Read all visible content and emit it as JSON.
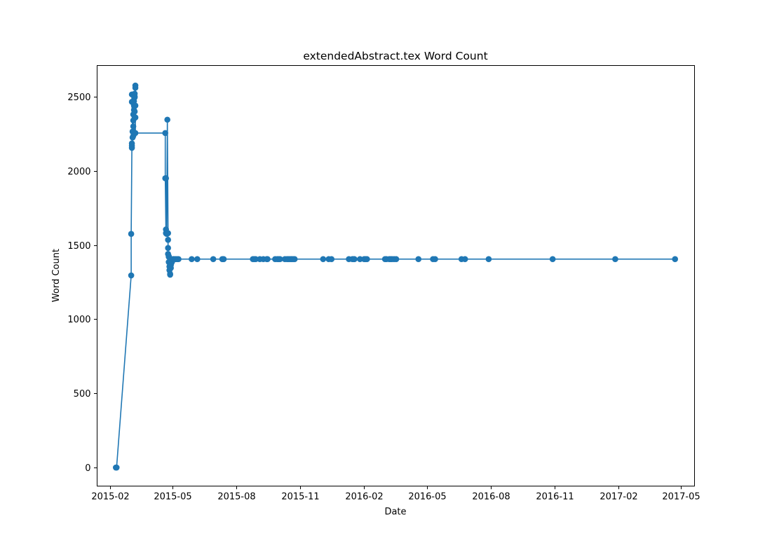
{
  "chart_data": {
    "type": "line",
    "title": "extendedAbstract.tex Word Count",
    "xlabel": "Date",
    "ylabel": "Word Count",
    "x_axis_kind": "date",
    "xlim": [
      "2015-01-13",
      "2017-05-21"
    ],
    "ylim": [
      -125,
      2710
    ],
    "x_ticks": [
      "2015-02-01",
      "2015-05-01",
      "2015-08-01",
      "2015-11-01",
      "2016-02-01",
      "2016-05-01",
      "2016-08-01",
      "2016-11-01",
      "2017-02-01",
      "2017-05-01"
    ],
    "x_tick_labels": [
      "2015-02",
      "2015-05",
      "2015-08",
      "2015-11",
      "2016-02",
      "2016-05",
      "2016-08",
      "2016-11",
      "2017-02",
      "2017-05"
    ],
    "y_ticks": [
      0,
      500,
      1000,
      1500,
      2000,
      2500
    ],
    "y_tick_labels": [
      "0",
      "500",
      "1000",
      "1500",
      "2000",
      "2500"
    ],
    "grid": false,
    "legend": "none",
    "marker": "circle",
    "color": "#1f77b4",
    "series": [
      {
        "x": [
          "2015-02-09",
          "2015-02-10",
          "2015-03-03",
          "2015-03-03",
          "2015-03-04",
          "2015-03-04",
          "2015-03-04",
          "2015-03-05",
          "2015-03-05",
          "2015-03-04",
          "2015-03-04",
          "2015-03-06",
          "2015-03-06",
          "2015-03-06",
          "2015-03-06",
          "2015-03-06",
          "2015-03-07",
          "2015-03-07",
          "2015-03-07",
          "2015-03-08",
          "2015-03-08",
          "2015-03-08",
          "2015-03-08",
          "2015-03-09",
          "2015-03-09",
          "2015-03-09",
          "2015-03-09",
          "2015-03-09",
          "2015-04-21",
          "2015-04-21",
          "2015-04-22",
          "2015-04-22",
          "2015-04-22",
          "2015-04-23",
          "2015-04-24",
          "2015-04-25",
          "2015-04-25",
          "2015-04-25",
          "2015-04-25",
          "2015-04-26",
          "2015-04-26",
          "2015-04-26",
          "2015-04-27",
          "2015-04-27",
          "2015-04-28",
          "2015-04-28",
          "2015-04-29",
          "2015-04-29",
          "2015-04-30",
          "2015-05-01",
          "2015-05-02",
          "2015-05-03",
          "2015-05-04",
          "2015-05-06",
          "2015-05-08",
          "2015-05-10",
          "2015-05-29",
          "2015-06-06",
          "2015-06-29",
          "2015-07-12",
          "2015-07-13",
          "2015-07-14",
          "2015-08-25",
          "2015-08-27",
          "2015-08-29",
          "2015-09-04",
          "2015-09-09",
          "2015-09-14",
          "2015-09-15",
          "2015-09-26",
          "2015-09-29",
          "2015-10-01",
          "2015-10-03",
          "2015-10-10",
          "2015-10-13",
          "2015-10-15",
          "2015-10-17",
          "2015-10-19",
          "2015-10-20",
          "2015-10-22",
          "2015-10-24",
          "2015-12-04",
          "2015-12-12",
          "2015-12-16",
          "2016-01-10",
          "2016-01-15",
          "2016-01-17",
          "2016-01-18",
          "2016-01-26",
          "2016-02-01",
          "2016-02-03",
          "2016-02-05",
          "2016-03-02",
          "2016-03-04",
          "2016-03-08",
          "2016-03-10",
          "2016-03-12",
          "2016-03-15",
          "2016-03-18",
          "2016-04-19",
          "2016-05-10",
          "2016-05-13",
          "2016-06-20",
          "2016-06-25",
          "2016-07-29",
          "2016-10-29",
          "2017-01-27",
          "2017-04-23"
        ],
        "y": [
          0,
          0,
          1295,
          1575,
          2155,
          2170,
          2185,
          2225,
          2265,
          2465,
          2515,
          2235,
          2265,
          2300,
          2340,
          2380,
          2410,
          2440,
          2470,
          2500,
          2520,
          2495,
          2400,
          2575,
          2560,
          2440,
          2360,
          2255,
          2255,
          1950,
          1580,
          1605,
          1950,
          1575,
          2345,
          1580,
          1535,
          1480,
          1440,
          1425,
          1420,
          1385,
          1355,
          1330,
          1305,
          1300,
          1345,
          1365,
          1380,
          1390,
          1405,
          1405,
          1405,
          1405,
          1405,
          1405,
          1405,
          1405,
          1405,
          1405,
          1405,
          1405,
          1405,
          1405,
          1405,
          1405,
          1405,
          1405,
          1405,
          1405,
          1405,
          1405,
          1405,
          1405,
          1405,
          1405,
          1405,
          1405,
          1405,
          1405,
          1405,
          1405,
          1405,
          1405,
          1405,
          1405,
          1405,
          1405,
          1405,
          1405,
          1405,
          1405,
          1405,
          1405,
          1405,
          1405,
          1405,
          1405,
          1405,
          1405,
          1405,
          1405,
          1405,
          1405,
          1405,
          1405,
          1405,
          1405
        ]
      }
    ]
  }
}
